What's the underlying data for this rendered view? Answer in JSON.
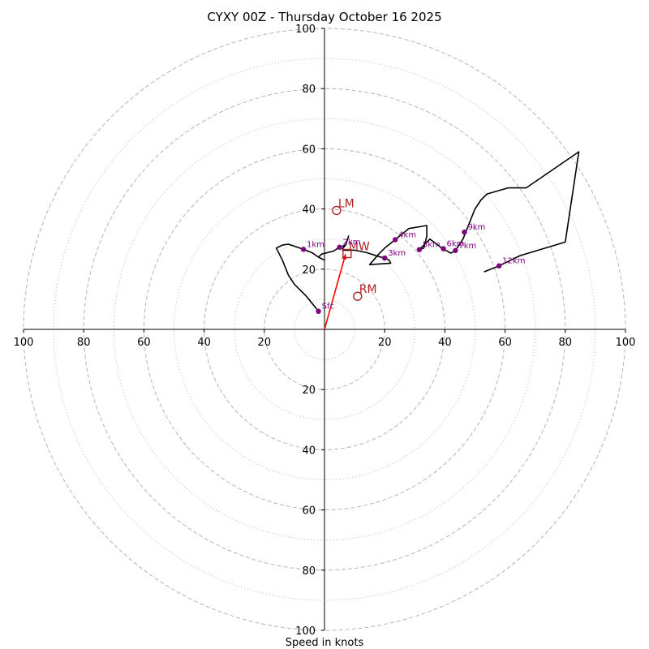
{
  "chart_data": {
    "type": "hodograph",
    "title": "CYXY 00Z - Thursday October 16 2025",
    "xlabel": "Speed in knots",
    "xlim": [
      -100,
      100
    ],
    "ylim": [
      -100,
      100
    ],
    "tick_values": [
      -100,
      -80,
      -60,
      -40,
      -20,
      20,
      40,
      60,
      80,
      100
    ],
    "tick_labels": [
      "100",
      "80",
      "60",
      "40",
      "20",
      "20",
      "40",
      "60",
      "80",
      "100"
    ],
    "rings_major": [
      20,
      40,
      60,
      80,
      100
    ],
    "rings_minor": [
      10,
      30,
      50,
      70,
      90
    ],
    "grid": true,
    "colors": {
      "trace": "#000000",
      "heights": "#800080",
      "motion": "#b22222",
      "vector": "#ff0000",
      "grid": "#b4b4b4"
    },
    "trace": [
      [
        -2,
        6
      ],
      [
        -6,
        11
      ],
      [
        -10,
        15
      ],
      [
        -12,
        18
      ],
      [
        -14,
        23
      ],
      [
        -16,
        27
      ],
      [
        -14,
        28
      ],
      [
        -12,
        28.3
      ],
      [
        -7,
        26.6
      ],
      [
        -4,
        25.4
      ],
      [
        -2,
        24
      ],
      [
        0,
        23
      ],
      [
        -2,
        24
      ],
      [
        -1,
        25
      ],
      [
        3,
        26
      ],
      [
        5,
        27.3
      ],
      [
        7,
        28
      ],
      [
        8,
        31
      ],
      [
        7,
        28
      ],
      [
        6,
        26.8
      ],
      [
        6,
        26.3
      ],
      [
        10,
        26.3
      ],
      [
        14,
        25.5
      ],
      [
        18,
        24.2
      ],
      [
        20,
        23.7
      ],
      [
        21.5,
        23
      ],
      [
        22,
        22
      ],
      [
        15,
        21.5
      ],
      [
        18,
        25
      ],
      [
        20,
        27
      ],
      [
        23.5,
        29.8
      ],
      [
        28,
        33.5
      ],
      [
        34,
        34.5
      ],
      [
        34,
        31
      ],
      [
        33,
        27
      ],
      [
        31.5,
        26.5
      ],
      [
        35,
        30
      ],
      [
        39,
        27
      ],
      [
        42,
        25.3
      ],
      [
        43.5,
        26.2
      ],
      [
        46,
        30
      ],
      [
        48,
        35
      ],
      [
        50,
        40
      ],
      [
        52,
        43
      ],
      [
        54,
        45
      ],
      [
        61,
        47
      ],
      [
        67,
        47
      ],
      [
        84.5,
        59
      ],
      [
        80,
        29
      ],
      [
        65,
        24.5
      ],
      [
        58,
        21.1
      ],
      [
        53,
        19.1
      ]
    ],
    "heights": [
      {
        "label": "Sfc",
        "u": -2,
        "v": 6
      },
      {
        "label": "1km",
        "u": -7,
        "v": 26.6
      },
      {
        "label": "2km",
        "u": 5,
        "v": 27.3
      },
      {
        "label": "3km",
        "u": 20,
        "v": 23.7
      },
      {
        "label": "4km",
        "u": 23.5,
        "v": 29.8
      },
      {
        "label": "5km",
        "u": 31.5,
        "v": 26.5
      },
      {
        "label": "6km",
        "u": 39.5,
        "v": 26.8
      },
      {
        "label": "7km",
        "u": 43.5,
        "v": 26.2
      },
      {
        "label": "9km",
        "u": 46.5,
        "v": 32.3
      },
      {
        "label": "12km",
        "u": 58,
        "v": 21.1
      }
    ],
    "storm_motion": [
      {
        "label": "LM",
        "u": 4,
        "v": 39.5,
        "marker": "circle"
      },
      {
        "label": "RM",
        "u": 11,
        "v": 11,
        "marker": "circle"
      },
      {
        "label": "MW",
        "u": 7.5,
        "v": 25.2,
        "marker": "square"
      }
    ],
    "mean_wind_vector": {
      "u": 7,
      "v": 25
    }
  }
}
